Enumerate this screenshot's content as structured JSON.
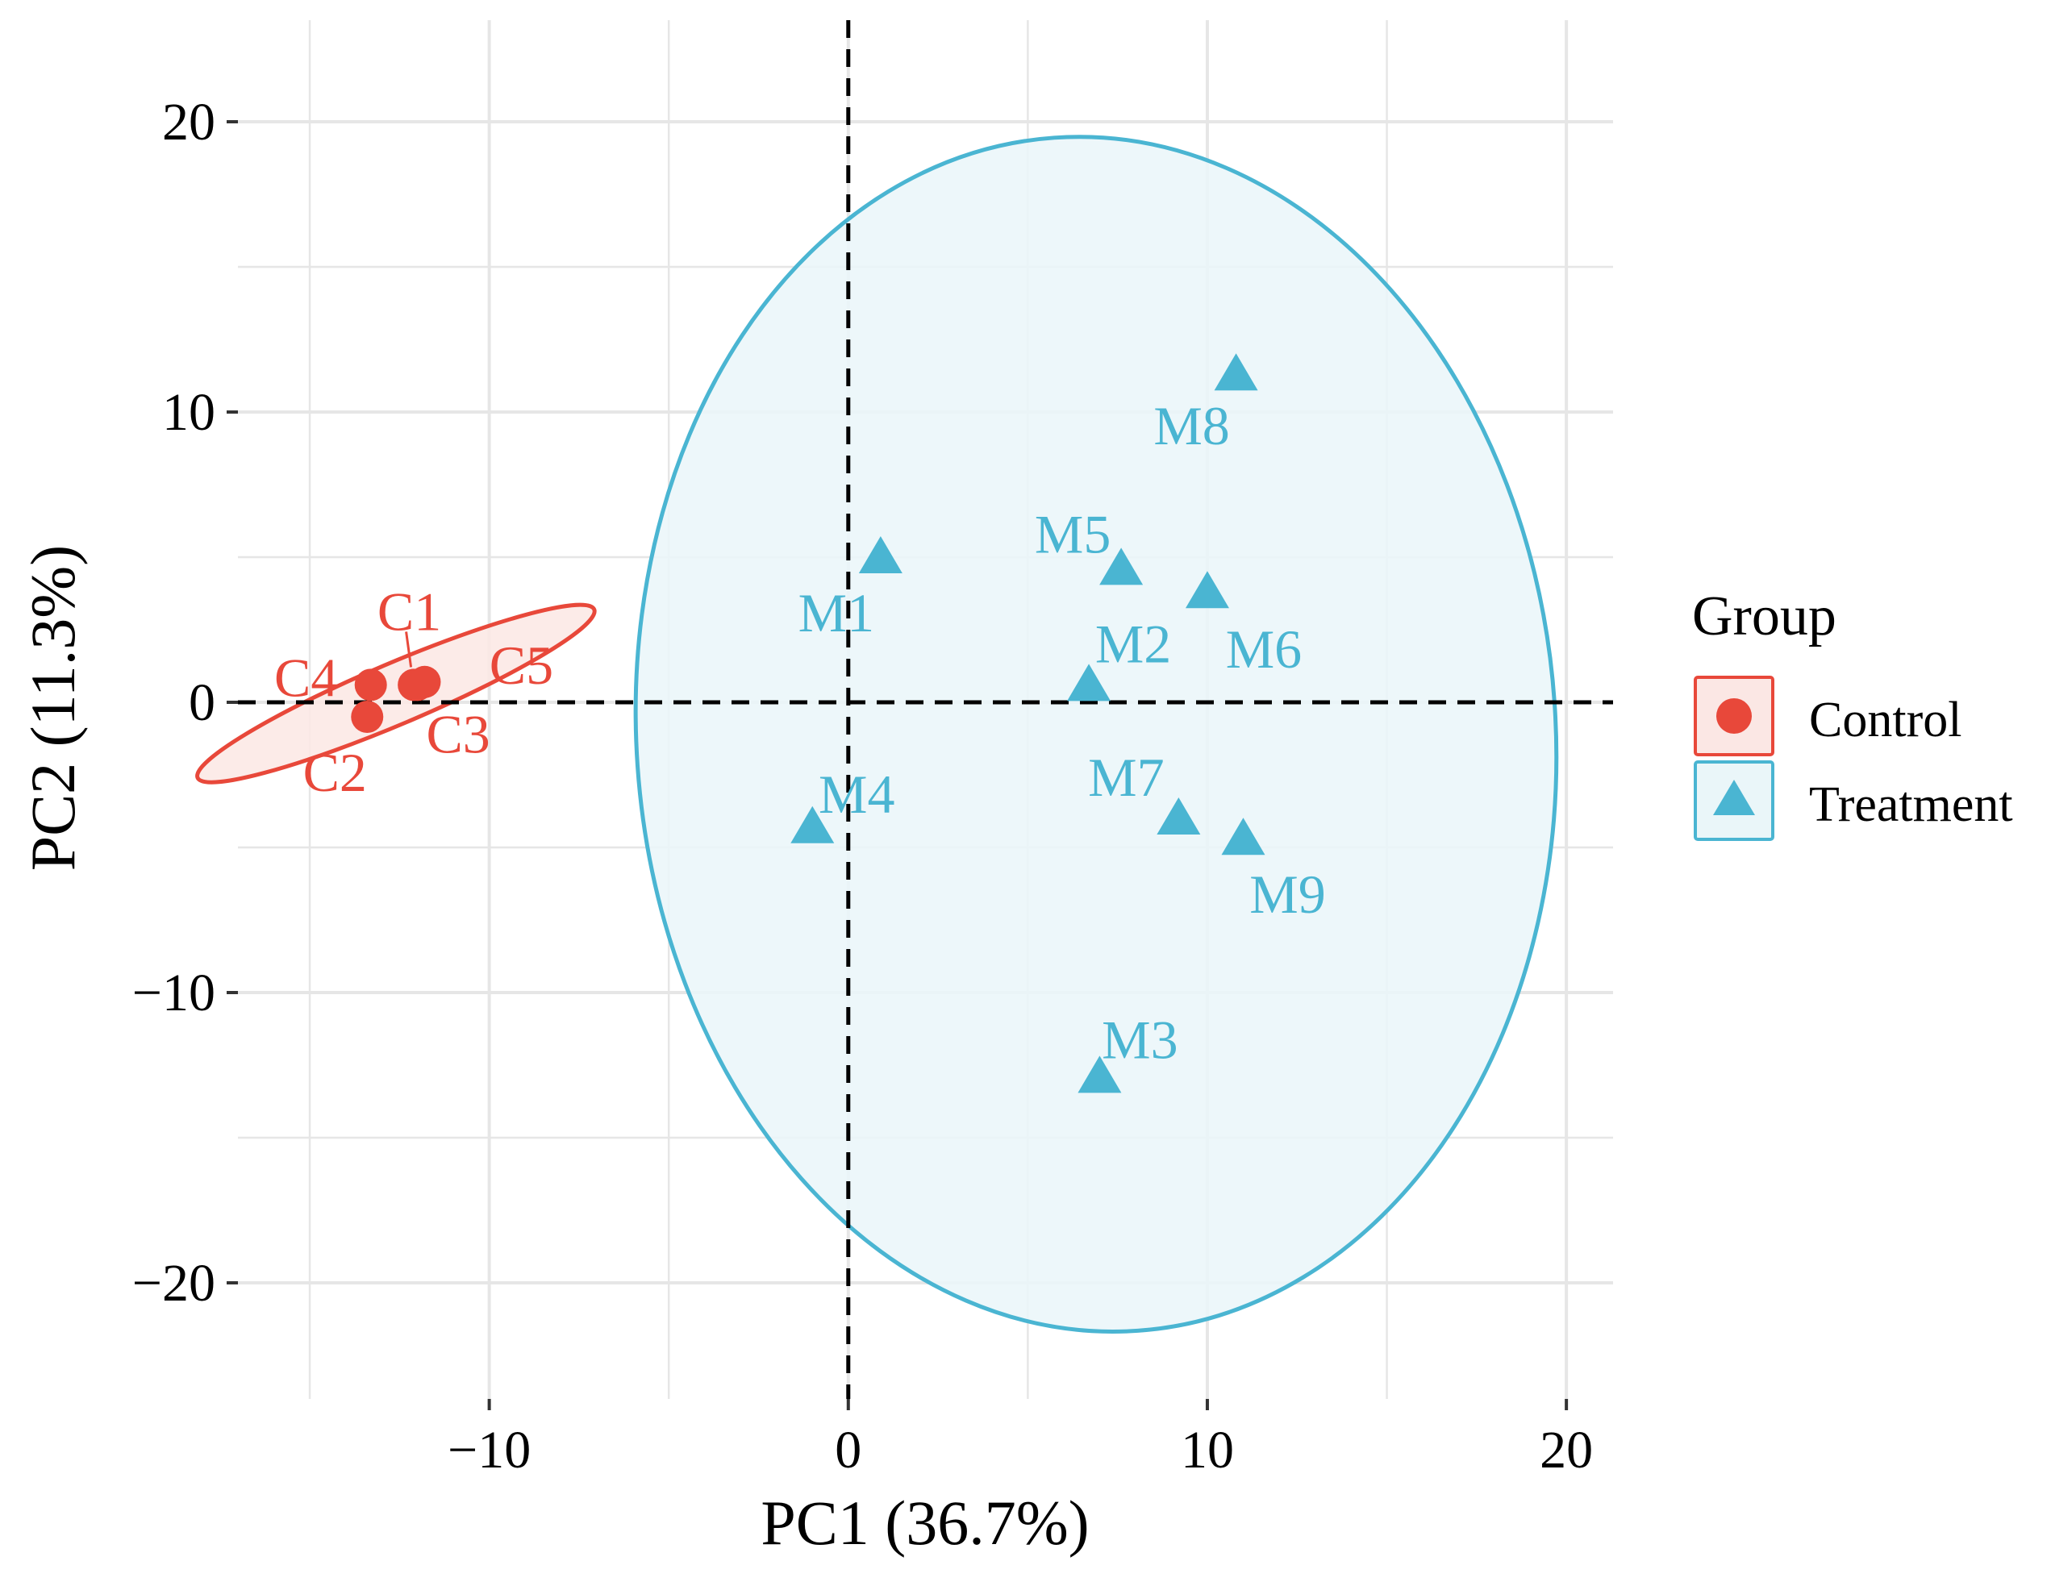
{
  "colors": {
    "control": "#E8483A",
    "treatment": "#4AB5D2",
    "treatment_fill": "#EAF6F9",
    "control_fill": "#FBE7E4",
    "grid": "#E6E6E6",
    "axis_text": "#000000"
  },
  "legend": {
    "title": "Group",
    "items": [
      {
        "label": "Control",
        "shape": "circle",
        "color_key": "control"
      },
      {
        "label": "Treatment",
        "shape": "triangle",
        "color_key": "treatment"
      }
    ]
  },
  "chart_data": {
    "type": "scatter",
    "title": "",
    "xlabel": "PC1 (36.7%)",
    "ylabel": "PC2 (11.3%)",
    "xlim": [
      -17,
      21.3
    ],
    "ylim": [
      -24,
      23.5
    ],
    "xticks": [
      -10,
      0,
      10,
      20
    ],
    "xtick_labels": [
      "−10",
      "0",
      "10",
      "20"
    ],
    "yticks": [
      -20,
      -10,
      0,
      10,
      20
    ],
    "ytick_labels": [
      "−20",
      "−10",
      "0",
      "10",
      "20"
    ],
    "grid": true,
    "reference_lines": {
      "x": 0,
      "y": 0,
      "style": "dashed"
    },
    "series": [
      {
        "name": "Control",
        "marker": "circle",
        "points": [
          {
            "label": "C1",
            "x": -12.0,
            "y": 0.6
          },
          {
            "label": "C2",
            "x": -13.4,
            "y": -0.5
          },
          {
            "label": "C3",
            "x": -12.1,
            "y": 0.6
          },
          {
            "label": "C4",
            "x": -13.3,
            "y": 0.6
          },
          {
            "label": "C5",
            "x": -11.8,
            "y": 0.7
          }
        ],
        "ellipse": {
          "cx": -12.6,
          "cy": 0.3,
          "rx": 6.0,
          "ry": 1.05,
          "rotation_deg": 23
        }
      },
      {
        "name": "Treatment",
        "marker": "triangle",
        "points": [
          {
            "label": "M1",
            "x": 0.9,
            "y": 5.0
          },
          {
            "label": "M2",
            "x": 6.7,
            "y": 0.6
          },
          {
            "label": "M3",
            "x": 7.0,
            "y": -12.9
          },
          {
            "label": "M4",
            "x": -1.0,
            "y": -4.3
          },
          {
            "label": "M5",
            "x": 7.6,
            "y": 4.6
          },
          {
            "label": "M6",
            "x": 10.0,
            "y": 3.8
          },
          {
            "label": "M7",
            "x": 9.2,
            "y": -4.0
          },
          {
            "label": "M8",
            "x": 10.8,
            "y": 11.3
          },
          {
            "label": "M9",
            "x": 11.0,
            "y": -4.7
          }
        ],
        "ellipse": {
          "cx": 6.9,
          "cy": -1.1,
          "rx": 12.8,
          "ry": 20.6,
          "rotation_deg": 4
        }
      }
    ]
  }
}
